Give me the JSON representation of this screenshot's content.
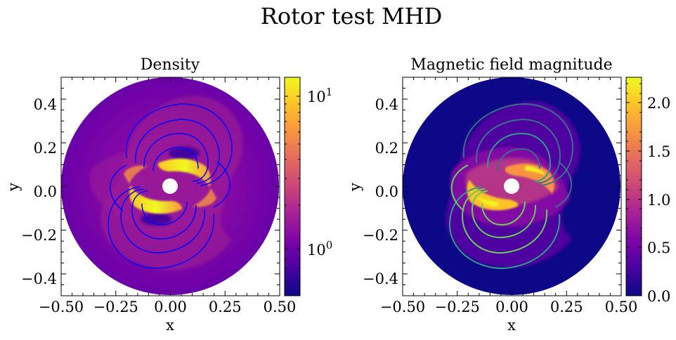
{
  "figure": {
    "title": "Rotor test MHD"
  },
  "chart_data": [
    {
      "type": "heatmap",
      "title": "Density",
      "xlabel": "x",
      "ylabel": "y",
      "xlim": [
        -0.5,
        0.5
      ],
      "ylim": [
        -0.5,
        0.5
      ],
      "xticks": [
        "−0.50",
        "−0.25",
        "0.00",
        "0.25",
        "0.50"
      ],
      "yticks": [
        "−0.4",
        "−0.2",
        "0.0",
        "0.2",
        "0.4"
      ],
      "colormap": "plasma",
      "colorbar": {
        "scale": "log",
        "ticks": [
          "10",
          "10"
        ],
        "tick_exponents": [
          "1",
          "0"
        ],
        "tick_values": [
          10,
          1
        ],
        "range": [
          0.5,
          14
        ]
      },
      "contour_color": "#0000ff",
      "features": {
        "domain_radius": 0.5,
        "central_hole_radius": 0.035,
        "background_value": 1.0,
        "rotor_arm_max": 14
      }
    },
    {
      "type": "heatmap",
      "title": "Magnetic field magnitude",
      "xlabel": "x",
      "ylabel": "y",
      "xlim": [
        -0.5,
        0.5
      ],
      "ylim": [
        -0.5,
        0.5
      ],
      "xticks": [
        "−0.50",
        "−0.25",
        "0.00",
        "0.25",
        "0.50"
      ],
      "yticks": [
        "−0.4",
        "−0.2",
        "0.0",
        "0.2",
        "0.4"
      ],
      "colormap": "plasma",
      "colorbar": {
        "scale": "linear",
        "ticks": [
          "2.0",
          "1.5",
          "1.0",
          "0.5",
          "0.0"
        ],
        "tick_values": [
          2.0,
          1.5,
          1.0,
          0.5,
          0.0
        ],
        "range": [
          0.0,
          2.27
        ]
      },
      "contour_colors": [
        "#3b6f8e",
        "#2f9c8a",
        "#6cce5a"
      ],
      "features": {
        "domain_radius": 0.5,
        "central_hole_radius": 0.035,
        "background_value": 0.05,
        "max_value": 2.27
      }
    }
  ]
}
